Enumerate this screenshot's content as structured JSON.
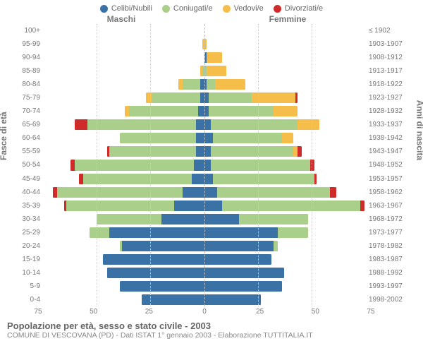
{
  "legend": [
    {
      "label": "Celibi/Nubili",
      "color": "#3b72a5"
    },
    {
      "label": "Coniugati/e",
      "color": "#a9cf8b"
    },
    {
      "label": "Vedovi/e",
      "color": "#f5be4a"
    },
    {
      "label": "Divorziati/e",
      "color": "#cf2b2b"
    }
  ],
  "side_titles": {
    "male": "Maschi",
    "female": "Femmine"
  },
  "y_axis_left_label": "Fasce di età",
  "y_axis_right_label": "Anni di nascita",
  "x_max": 75,
  "x_ticks": [
    75,
    50,
    25,
    0,
    25,
    50,
    75
  ],
  "age_labels": [
    "100+",
    "95-99",
    "90-94",
    "85-89",
    "80-84",
    "75-79",
    "70-74",
    "65-69",
    "60-64",
    "55-59",
    "50-54",
    "45-49",
    "40-44",
    "35-39",
    "30-34",
    "25-29",
    "20-24",
    "15-19",
    "10-14",
    "5-9",
    "0-4"
  ],
  "birth_labels": [
    "≤ 1902",
    "1903-1907",
    "1908-1912",
    "1913-1917",
    "1918-1922",
    "1923-1927",
    "1928-1932",
    "1933-1937",
    "1938-1942",
    "1943-1947",
    "1948-1952",
    "1953-1957",
    "1958-1962",
    "1963-1967",
    "1968-1972",
    "1973-1977",
    "1978-1982",
    "1983-1987",
    "1988-1992",
    "1993-1997",
    "1998-2002"
  ],
  "colors": {
    "single": "#3b72a5",
    "married": "#a9cf8b",
    "widowed": "#f5be4a",
    "divorced": "#cf2b2b",
    "grid": "#cccccc",
    "bg": "#ffffff"
  },
  "rows": [
    {
      "m": {
        "s": 0,
        "c": 0,
        "w": 0,
        "d": 0
      },
      "f": {
        "s": 0,
        "c": 0,
        "w": 0,
        "d": 0
      }
    },
    {
      "m": {
        "s": 0,
        "c": 0,
        "w": 1,
        "d": 0
      },
      "f": {
        "s": 0,
        "c": 0,
        "w": 1,
        "d": 0
      }
    },
    {
      "m": {
        "s": 0,
        "c": 0,
        "w": 0,
        "d": 0
      },
      "f": {
        "s": 1,
        "c": 0,
        "w": 7,
        "d": 0
      }
    },
    {
      "m": {
        "s": 0,
        "c": 1,
        "w": 1,
        "d": 0
      },
      "f": {
        "s": 0,
        "c": 1,
        "w": 9,
        "d": 0
      }
    },
    {
      "m": {
        "s": 2,
        "c": 8,
        "w": 2,
        "d": 0
      },
      "f": {
        "s": 1,
        "c": 4,
        "w": 14,
        "d": 0
      }
    },
    {
      "m": {
        "s": 2,
        "c": 22,
        "w": 3,
        "d": 0
      },
      "f": {
        "s": 2,
        "c": 20,
        "w": 20,
        "d": 1
      }
    },
    {
      "m": {
        "s": 3,
        "c": 32,
        "w": 2,
        "d": 0
      },
      "f": {
        "s": 2,
        "c": 30,
        "w": 11,
        "d": 0
      }
    },
    {
      "m": {
        "s": 4,
        "c": 50,
        "w": 0,
        "d": 6
      },
      "f": {
        "s": 3,
        "c": 40,
        "w": 10,
        "d": 0
      }
    },
    {
      "m": {
        "s": 4,
        "c": 35,
        "w": 0,
        "d": 0
      },
      "f": {
        "s": 4,
        "c": 32,
        "w": 5,
        "d": 0
      }
    },
    {
      "m": {
        "s": 4,
        "c": 40,
        "w": 0,
        "d": 1
      },
      "f": {
        "s": 3,
        "c": 38,
        "w": 2,
        "d": 2
      }
    },
    {
      "m": {
        "s": 5,
        "c": 55,
        "w": 0,
        "d": 2
      },
      "f": {
        "s": 3,
        "c": 46,
        "w": 0,
        "d": 2
      }
    },
    {
      "m": {
        "s": 6,
        "c": 50,
        "w": 0,
        "d": 2
      },
      "f": {
        "s": 4,
        "c": 47,
        "w": 0,
        "d": 1
      }
    },
    {
      "m": {
        "s": 10,
        "c": 58,
        "w": 0,
        "d": 2
      },
      "f": {
        "s": 6,
        "c": 52,
        "w": 0,
        "d": 3
      }
    },
    {
      "m": {
        "s": 14,
        "c": 50,
        "w": 0,
        "d": 1
      },
      "f": {
        "s": 8,
        "c": 64,
        "w": 0,
        "d": 2
      }
    },
    {
      "m": {
        "s": 20,
        "c": 30,
        "w": 0,
        "d": 0
      },
      "f": {
        "s": 16,
        "c": 32,
        "w": 0,
        "d": 0
      }
    },
    {
      "m": {
        "s": 44,
        "c": 9,
        "w": 0,
        "d": 0
      },
      "f": {
        "s": 34,
        "c": 14,
        "w": 0,
        "d": 0
      }
    },
    {
      "m": {
        "s": 38,
        "c": 1,
        "w": 0,
        "d": 0
      },
      "f": {
        "s": 32,
        "c": 2,
        "w": 0,
        "d": 0
      }
    },
    {
      "m": {
        "s": 47,
        "c": 0,
        "w": 0,
        "d": 0
      },
      "f": {
        "s": 31,
        "c": 0,
        "w": 0,
        "d": 0
      }
    },
    {
      "m": {
        "s": 45,
        "c": 0,
        "w": 0,
        "d": 0
      },
      "f": {
        "s": 37,
        "c": 0,
        "w": 0,
        "d": 0
      }
    },
    {
      "m": {
        "s": 39,
        "c": 0,
        "w": 0,
        "d": 0
      },
      "f": {
        "s": 36,
        "c": 0,
        "w": 0,
        "d": 0
      }
    },
    {
      "m": {
        "s": 29,
        "c": 0,
        "w": 0,
        "d": 0
      },
      "f": {
        "s": 26,
        "c": 0,
        "w": 0,
        "d": 0
      }
    }
  ],
  "footer": {
    "title": "Popolazione per età, sesso e stato civile - 2003",
    "sub": "COMUNE DI VESCOVANA (PD) - Dati ISTAT 1° gennaio 2003 - Elaborazione TUTTITALIA.IT"
  }
}
